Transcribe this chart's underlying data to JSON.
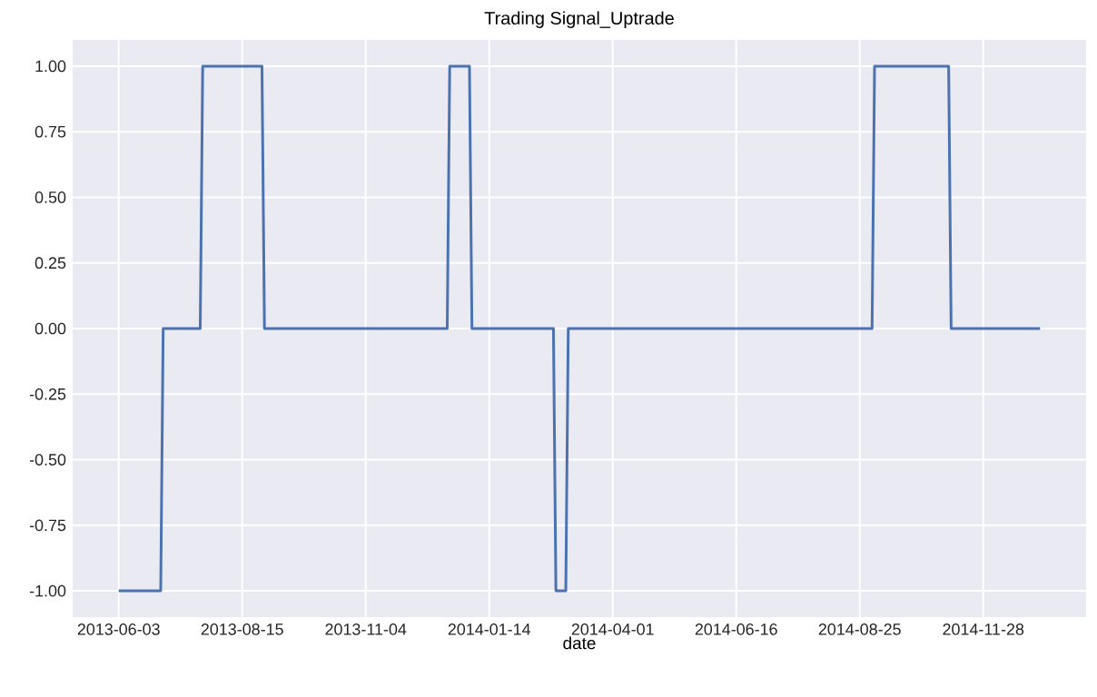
{
  "chart_data": {
    "type": "line",
    "title": "Trading Signal_Uptrade",
    "xlabel": "date",
    "categories": [
      "2013-06-03",
      null,
      null,
      null,
      null,
      null,
      null,
      null,
      null,
      null,
      null,
      null,
      null,
      null,
      null,
      null,
      null,
      null,
      null,
      null,
      null,
      null,
      null,
      null,
      null,
      null,
      null,
      null,
      null,
      null,
      null,
      null,
      null,
      null,
      null,
      null,
      null,
      null,
      null,
      null,
      null,
      null,
      null,
      null,
      null,
      null,
      null,
      null,
      null,
      null,
      "2013-08-15",
      null,
      null,
      null,
      null,
      null,
      null,
      null,
      null,
      null,
      null,
      null,
      null,
      null,
      null,
      null,
      null,
      null,
      null,
      null,
      null,
      null,
      null,
      null,
      null,
      null,
      null,
      null,
      null,
      null,
      null,
      null,
      null,
      null,
      null,
      null,
      null,
      null,
      null,
      null,
      null,
      null,
      null,
      null,
      null,
      null,
      null,
      null,
      null,
      null,
      "2013-11-04",
      null,
      null,
      null,
      null,
      null,
      null,
      null,
      null,
      null,
      null,
      null,
      null,
      null,
      null,
      null,
      null,
      null,
      null,
      null,
      null,
      null,
      null,
      null,
      null,
      null,
      null,
      null,
      null,
      null,
      null,
      null,
      null,
      null,
      null,
      null,
      null,
      null,
      null,
      null,
      null,
      null,
      null,
      null,
      null,
      null,
      null,
      null,
      null,
      null,
      "2014-01-14",
      null,
      null,
      null,
      null,
      null,
      null,
      null,
      null,
      null,
      null,
      null,
      null,
      null,
      null,
      null,
      null,
      null,
      null,
      null,
      null,
      null,
      null,
      null,
      null,
      null,
      null,
      null,
      null,
      null,
      null,
      null,
      null,
      null,
      null,
      null,
      null,
      null,
      null,
      null,
      null,
      null,
      null,
      null,
      null,
      null,
      null,
      null,
      null,
      null,
      "2014-04-01",
      null,
      null,
      null,
      null,
      null,
      null,
      null,
      null,
      null,
      null,
      null,
      null,
      null,
      null,
      null,
      null,
      null,
      null,
      null,
      null,
      null,
      null,
      null,
      null,
      null,
      null,
      null,
      null,
      null,
      null,
      null,
      null,
      null,
      null,
      null,
      null,
      null,
      null,
      null,
      null,
      null,
      null,
      null,
      null,
      null,
      null,
      null,
      null,
      null,
      "2014-06-16",
      null,
      null,
      null,
      null,
      null,
      null,
      null,
      null,
      null,
      null,
      null,
      null,
      null,
      null,
      null,
      null,
      null,
      null,
      null,
      null,
      null,
      null,
      null,
      null,
      null,
      null,
      null,
      null,
      null,
      null,
      null,
      null,
      null,
      null,
      null,
      null,
      null,
      null,
      null,
      null,
      null,
      null,
      null,
      null,
      null,
      null,
      null,
      null,
      null,
      "2014-08-25",
      null,
      null,
      null,
      null,
      null,
      null,
      null,
      null,
      null,
      null,
      null,
      null,
      null,
      null,
      null,
      null,
      null,
      null,
      null,
      null,
      null,
      null,
      null,
      null,
      null,
      null,
      null,
      null,
      null,
      null,
      null,
      null,
      null,
      null,
      null,
      null,
      null,
      null,
      null,
      null,
      null,
      null,
      null,
      null,
      null,
      null,
      null,
      null,
      null,
      "2014-11-28",
      null,
      null,
      null,
      null,
      null,
      null,
      null,
      null,
      null,
      null,
      null,
      null,
      null,
      null,
      null,
      null,
      null,
      null,
      null,
      null,
      null,
      null,
      null
    ],
    "ylim": [
      -1.1,
      1.1
    ],
    "yticks": [
      {
        "value": -1,
        "label": "-1.00"
      },
      {
        "value": -0.75,
        "label": "-0.75"
      },
      {
        "value": -0.5,
        "label": "-0.50"
      },
      {
        "value": -0.25,
        "label": "-0.25"
      },
      {
        "value": 0,
        "label": "0.00"
      },
      {
        "value": 0.25,
        "label": "0.25"
      },
      {
        "value": 0.5,
        "label": "0.50"
      },
      {
        "value": 0.75,
        "label": "0.75"
      },
      {
        "value": 1,
        "label": "1.00"
      }
    ],
    "grid": true,
    "marker": "none",
    "line_style": "solid",
    "series": [
      {
        "color": "#4c72b0",
        "values": [
          -1,
          -1,
          -1,
          -1,
          -1,
          -1,
          -1,
          -1,
          -1,
          -1,
          -1,
          -1,
          -1,
          -1,
          -1,
          -1,
          -1,
          -1,
          0,
          0,
          0,
          0,
          0,
          0,
          0,
          0,
          0,
          0,
          0,
          0,
          0,
          0,
          0,
          0,
          1,
          1,
          1,
          1,
          1,
          1,
          1,
          1,
          1,
          1,
          1,
          1,
          1,
          1,
          1,
          1,
          1,
          1,
          1,
          1,
          1,
          1,
          1,
          1,
          1,
          0,
          0,
          0,
          0,
          0,
          0,
          0,
          0,
          0,
          0,
          0,
          0,
          0,
          0,
          0,
          0,
          0,
          0,
          0,
          0,
          0,
          0,
          0,
          0,
          0,
          0,
          0,
          0,
          0,
          0,
          0,
          0,
          0,
          0,
          0,
          0,
          0,
          0,
          0,
          0,
          0,
          0,
          0,
          0,
          0,
          0,
          0,
          0,
          0,
          0,
          0,
          0,
          0,
          0,
          0,
          0,
          0,
          0,
          0,
          0,
          0,
          0,
          0,
          0,
          0,
          0,
          0,
          0,
          0,
          0,
          0,
          0,
          0,
          0,
          0,
          1,
          1,
          1,
          1,
          1,
          1,
          1,
          1,
          1,
          0,
          0,
          0,
          0,
          0,
          0,
          0,
          0,
          0,
          0,
          0,
          0,
          0,
          0,
          0,
          0,
          0,
          0,
          0,
          0,
          0,
          0,
          0,
          0,
          0,
          0,
          0,
          0,
          0,
          0,
          0,
          0,
          0,
          0,
          -1,
          -1,
          -1,
          -1,
          -1,
          0,
          0,
          0,
          0,
          0,
          0,
          0,
          0,
          0,
          0,
          0,
          0,
          0,
          0,
          0,
          0,
          0,
          0,
          0,
          0,
          0,
          0,
          0,
          0,
          0,
          0,
          0,
          0,
          0,
          0,
          0,
          0,
          0,
          0,
          0,
          0,
          0,
          0,
          0,
          0,
          0,
          0,
          0,
          0,
          0,
          0,
          0,
          0,
          0,
          0,
          0,
          0,
          0,
          0,
          0,
          0,
          0,
          0,
          0,
          0,
          0,
          0,
          0,
          0,
          0,
          0,
          0,
          0,
          0,
          0,
          0,
          0,
          0,
          0,
          0,
          0,
          0,
          0,
          0,
          0,
          0,
          0,
          0,
          0,
          0,
          0,
          0,
          0,
          0,
          0,
          0,
          0,
          0,
          0,
          0,
          0,
          0,
          0,
          0,
          0,
          0,
          0,
          0,
          0,
          0,
          0,
          0,
          0,
          0,
          0,
          0,
          0,
          0,
          0,
          0,
          0,
          0,
          0,
          0,
          0,
          0,
          0,
          0,
          0,
          1,
          1,
          1,
          1,
          1,
          1,
          1,
          1,
          1,
          1,
          1,
          1,
          1,
          1,
          1,
          1,
          1,
          1,
          1,
          1,
          1,
          1,
          1,
          1,
          1,
          1,
          1,
          1,
          1,
          1,
          1,
          0,
          0,
          0,
          0,
          0,
          0,
          0,
          0,
          0,
          0,
          0,
          0,
          0,
          0,
          0,
          0,
          0,
          0,
          0,
          0,
          0,
          0,
          0,
          0,
          0,
          0,
          0,
          0,
          0,
          0,
          0,
          0,
          0,
          0,
          0,
          0,
          0
        ]
      }
    ]
  }
}
